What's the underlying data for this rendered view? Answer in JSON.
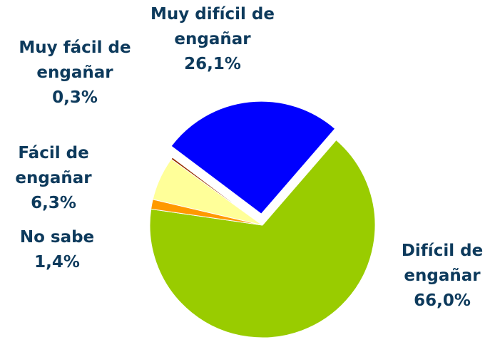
{
  "chart_data": {
    "type": "pie",
    "categories": [
      "Muy difícil de engañar",
      "Difícil de engañar",
      "No sabe",
      "Fácil de engañar",
      "Muy fácil de engañar"
    ],
    "values": [
      26.1,
      66.0,
      1.4,
      6.3,
      0.3
    ],
    "value_labels": [
      "26,1%",
      "66,0%",
      "1,4%",
      "6,3%",
      "0,3%"
    ],
    "colors": [
      "#0000ff",
      "#99cc00",
      "#ff9900",
      "#ffff99",
      "#993300"
    ]
  }
}
